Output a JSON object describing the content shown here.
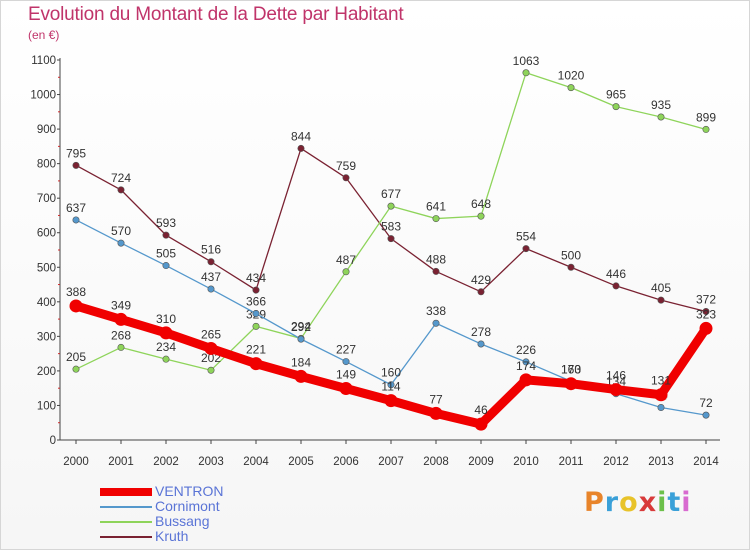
{
  "header": {
    "title": "Evolution du Montant de la Dette par Habitant",
    "subtitle": "(en €)"
  },
  "brand": {
    "letters": [
      "P",
      "r",
      "o",
      "x",
      "i",
      "t",
      "i"
    ],
    "colors": [
      "#e8842a",
      "#3aa0d8",
      "#e8c32a",
      "#d83a3a",
      "#6cc04a",
      "#3aa0d8",
      "#d86ad0"
    ]
  },
  "chart_data": {
    "type": "line",
    "x": [
      "2000",
      "2001",
      "2002",
      "2003",
      "2004",
      "2005",
      "2006",
      "2007",
      "2008",
      "2009",
      "2010",
      "2011",
      "2012",
      "2013",
      "2014"
    ],
    "ylim": [
      0,
      1100
    ],
    "yticks": [
      0,
      100,
      200,
      300,
      400,
      500,
      600,
      700,
      800,
      900,
      1000,
      1100
    ],
    "grid": false,
    "legend_position": "bottom-left",
    "series": [
      {
        "name": "Kruth",
        "color": "#7a2232",
        "values": [
          795,
          724,
          593,
          516,
          434,
          844,
          759,
          583,
          488,
          429,
          554,
          500,
          446,
          405,
          372
        ]
      },
      {
        "name": "Bussang",
        "color": "#8ed45a",
        "values": [
          205,
          268,
          234,
          202,
          329,
          294,
          487,
          677,
          641,
          648,
          1063,
          1020,
          965,
          935,
          899
        ]
      },
      {
        "name": "Cornimont",
        "color": "#5598cc",
        "values": [
          637,
          570,
          505,
          437,
          366,
          292,
          227,
          160,
          338,
          278,
          226,
          170,
          134,
          94,
          72
        ]
      },
      {
        "name": "VENTRON",
        "color": "#f00000",
        "values": [
          388,
          349,
          310,
          265,
          221,
          184,
          149,
          114,
          77,
          46,
          174,
          163,
          146,
          131,
          323
        ]
      }
    ],
    "legend_order": [
      "VENTRON",
      "Cornimont",
      "Bussang",
      "Kruth"
    ]
  }
}
